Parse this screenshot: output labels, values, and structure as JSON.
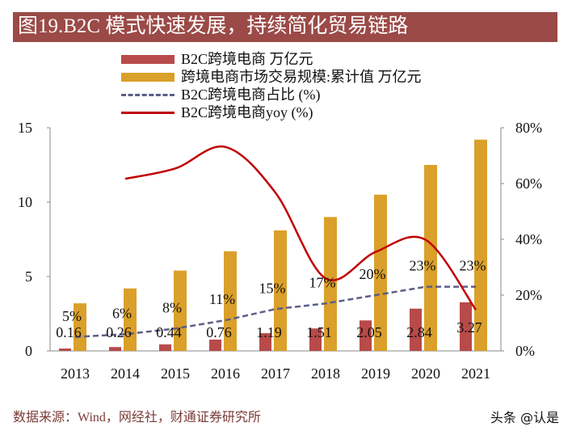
{
  "title": "图19.B2C 模式快速发展，持续简化贸易链路",
  "source": "数据来源：Wind，网经社，财通证券研究所",
  "watermark": "头条 @认是",
  "colors": {
    "title_bg": "#9b4a47",
    "b2c_bar": "#b84a4a",
    "market_bar": "#daa02a",
    "share_line": "#5c5e8a",
    "yoy_line": "#c00000"
  },
  "chart_data": {
    "type": "bar",
    "categories": [
      "2013",
      "2014",
      "2015",
      "2016",
      "2017",
      "2018",
      "2019",
      "2020",
      "2021"
    ],
    "left_axis": {
      "ylim": [
        0,
        15
      ],
      "ticks": [
        "0",
        "5",
        "10",
        "15"
      ]
    },
    "right_axis": {
      "ylim": [
        0,
        80
      ],
      "ticks": [
        "0%",
        "20%",
        "40%",
        "60%",
        "80%"
      ]
    },
    "legend_position": "top",
    "grid": false,
    "series": [
      {
        "name": "B2C跨境电商 万亿元",
        "type": "bar",
        "axis": "left",
        "values": [
          0.16,
          0.26,
          0.44,
          0.76,
          1.19,
          1.51,
          2.05,
          2.84,
          3.27
        ],
        "labels": [
          "0.16",
          "0.26",
          "0.44",
          "0.76",
          "1.19",
          "1.51",
          "2.05",
          "2.84",
          "3.27"
        ]
      },
      {
        "name": "跨境电商市场交易规模:累计值 万亿元",
        "type": "bar",
        "axis": "left",
        "values": [
          3.2,
          4.2,
          5.4,
          6.7,
          8.1,
          9.0,
          10.5,
          12.5,
          14.2
        ]
      },
      {
        "name": "B2C跨境电商占比 (%)",
        "type": "line-dashed",
        "axis": "right",
        "values": [
          5,
          6,
          8,
          11,
          15,
          17,
          20,
          23,
          23
        ],
        "labels": [
          "5%",
          "6%",
          "8%",
          "11%",
          "15%",
          "17%",
          "20%",
          "23%",
          "23%"
        ]
      },
      {
        "name": "B2C跨境电商yoy (%)",
        "type": "line",
        "axis": "right",
        "values": [
          null,
          61.7,
          65.4,
          73.1,
          56.7,
          26,
          35.5,
          39.8,
          14.7
        ]
      }
    ]
  }
}
